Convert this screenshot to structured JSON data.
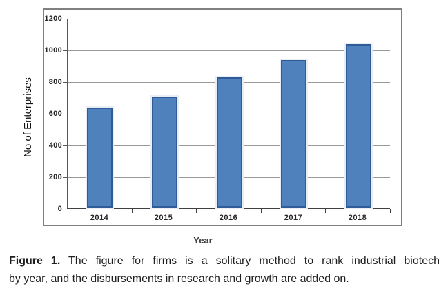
{
  "figure": {
    "caption": {
      "label": "Figure 1.",
      "line1_rest": " The figure for firms is a solitary method to rank industrial biotech",
      "line2": "by year, and the disbursements in research and growth are added on."
    }
  },
  "chart_data": {
    "type": "bar",
    "title": "",
    "categories": [
      "2014",
      "2015",
      "2016",
      "2017",
      "2018"
    ],
    "values": [
      630,
      700,
      820,
      930,
      1030
    ],
    "xlabel": "Year",
    "ylabel": "No of Enterprises",
    "ylim": [
      0,
      1200
    ],
    "yticks": [
      0,
      200,
      400,
      600,
      800,
      1000,
      1200
    ],
    "grid": true,
    "legend": false,
    "colors": {
      "bar_fill": "#4f81bd",
      "bar_border": "#2f5b97",
      "bar_halo": "#e9eef6",
      "gridline": "#9a9a9a",
      "axis": "#595959",
      "frame_border": "#808080",
      "tick_text": "#262626"
    }
  }
}
